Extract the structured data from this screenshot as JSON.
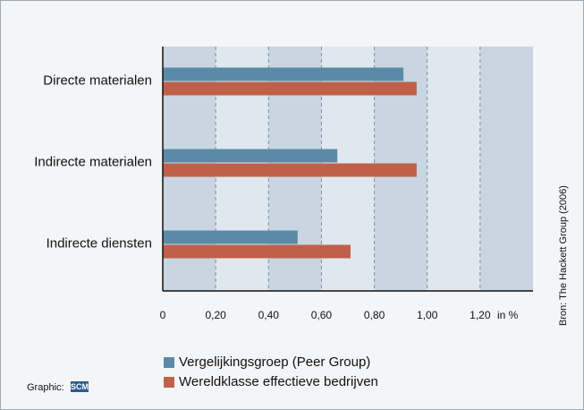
{
  "chart_data": {
    "type": "hbar",
    "categories": [
      "Directe materialen",
      "Indirecte materialen",
      "Indirecte diensten"
    ],
    "series": [
      {
        "name": "Vergelijkingsgroep (Peer Group)",
        "color": "#5b8aa6",
        "values": [
          0.91,
          0.66,
          0.51
        ]
      },
      {
        "name": "Wereldklasse effectieve bedrijven",
        "color": "#c0604a",
        "values": [
          0.96,
          0.96,
          0.71
        ]
      }
    ],
    "xlim": [
      0,
      1.4
    ],
    "xticks": [
      0,
      {
        "value": 0.2,
        "label": "0,20"
      },
      {
        "value": 0.4,
        "label": "0,40"
      },
      {
        "value": 0.6,
        "label": "0,60"
      },
      {
        "value": 0.8,
        "label": "0,80"
      },
      {
        "value": 1.0,
        "label": "1,00"
      },
      {
        "value": 1.2,
        "label": "1,20"
      }
    ],
    "x_unit": "in %",
    "grid": true,
    "source": "Bron: The Hackett Group (2006)",
    "credit": "Graphic:",
    "logo": "SCM"
  }
}
